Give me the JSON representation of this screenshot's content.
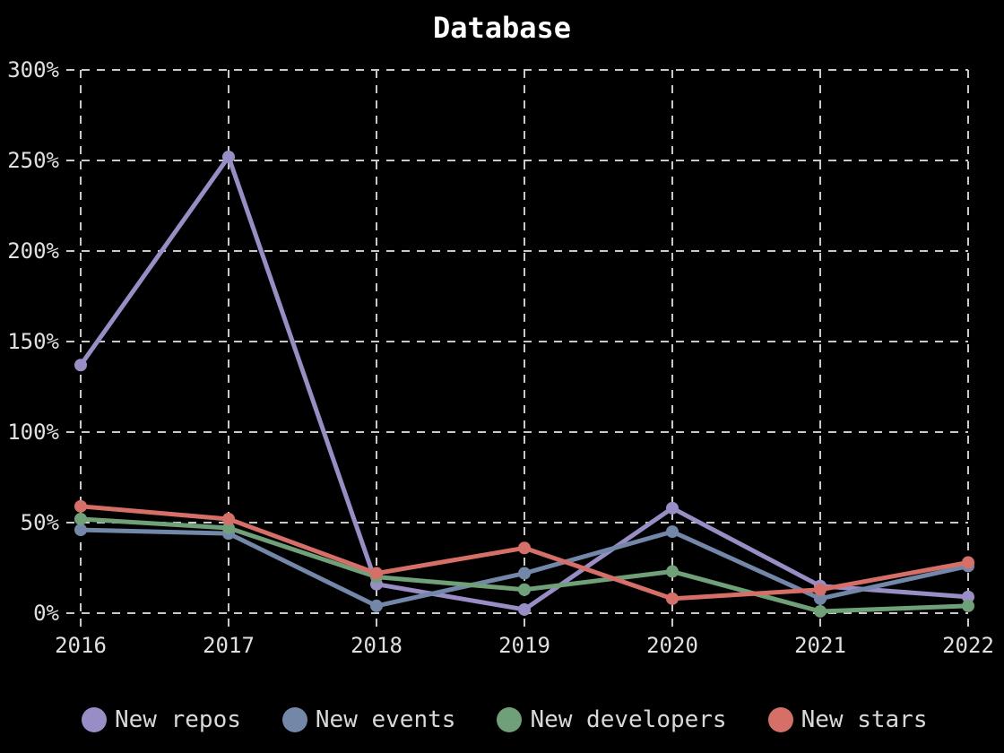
{
  "chart_data": {
    "type": "line",
    "title": "Database",
    "xlabel": "",
    "ylabel": "",
    "categories": [
      "2016",
      "2017",
      "2018",
      "2019",
      "2020",
      "2021",
      "2022"
    ],
    "series": [
      {
        "name": "New repos",
        "color": "#998dc5",
        "values": [
          137,
          252,
          16,
          2,
          58,
          15,
          9
        ]
      },
      {
        "name": "New events",
        "color": "#7387a9",
        "values": [
          46,
          44,
          4,
          22,
          45,
          8,
          26
        ]
      },
      {
        "name": "New developers",
        "color": "#6fa078",
        "values": [
          52,
          47,
          20,
          13,
          23,
          1,
          4
        ]
      },
      {
        "name": "New stars",
        "color": "#d76f69",
        "values": [
          59,
          52,
          22,
          36,
          8,
          13,
          28
        ]
      }
    ],
    "ylim": [
      0,
      300
    ],
    "y_ticks": [
      {
        "value": 0,
        "label": "0%"
      },
      {
        "value": 50,
        "label": "50%"
      },
      {
        "value": 100,
        "label": "100%"
      },
      {
        "value": 150,
        "label": "150%"
      },
      {
        "value": 200,
        "label": "200%"
      },
      {
        "value": 250,
        "label": "250%"
      },
      {
        "value": 300,
        "label": "300%"
      }
    ],
    "grid": "dashed",
    "legend_position": "bottom",
    "marker": "circle",
    "colors": {
      "background": "#000000",
      "grid": "#c9c9c9",
      "tick_text": "#e0e0e0",
      "title_text": "#ffffff",
      "legend_text": "#d9d9d9"
    }
  }
}
